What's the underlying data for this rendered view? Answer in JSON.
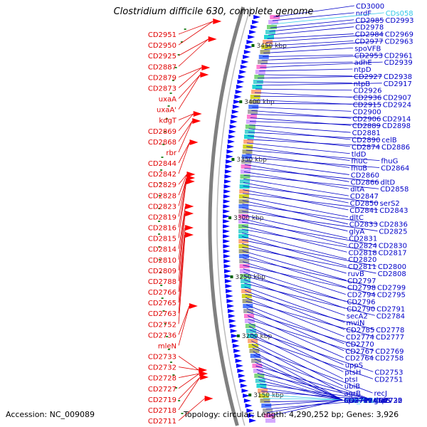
{
  "title": "Clostridium difficile 630, complete genome",
  "footer": {
    "accession": "Accession: NC_009089",
    "summary": "Topology: circular; Length: 4,290,252 bp; Genes: 3,926"
  },
  "colors": {
    "left_labels": "#e00000",
    "right_labels": "#0000c8",
    "rna_labels": "#33c8e8",
    "backbone": "#808080",
    "gene_fwd": "#ff0000",
    "gene_rev": "#0000ff",
    "scale_tick": "#006400"
  },
  "scale_marks": [
    "3450 kbp",
    "3400 kbp",
    "3350 kbp",
    "3300 kbp",
    "3250 kbp",
    "3200 kbp",
    "3150 kbp"
  ],
  "left_labels": [
    "CD2951",
    "CD2950",
    "CD2925",
    "CD2887",
    "CD2879",
    "CD2873",
    "uxaA",
    "uxaA'",
    "kdgT",
    "CD2869",
    "CD2868",
    "rbr",
    "CD2844",
    "CD2842",
    "CD2829",
    "CD2828",
    "CD2823",
    "CD2819",
    "CD2816",
    "CD2815",
    "CD2814",
    "CD2810",
    "CD2809",
    "CD2788",
    "CD2766",
    "CD2765",
    "CD2763",
    "CD2752",
    "CD2736",
    "mleN",
    "CD2733",
    "CD2732",
    "CD2728",
    "CD2727",
    "CD2719",
    "CD2718",
    "CD2711"
  ],
  "right_labels": [
    {
      "text": "CD3000",
      "rna": false
    },
    {
      "text": "nrdF",
      "rna": false
    },
    {
      "text": "CDs058",
      "rna": true
    },
    {
      "text": "CD2985",
      "rna": false
    },
    {
      "text": "CD2993",
      "rna": false
    },
    {
      "text": "CD2978",
      "rna": false
    },
    {
      "text": "CD2984",
      "rna": false
    },
    {
      "text": "CD2969",
      "rna": false
    },
    {
      "text": "CD2977",
      "rna": false
    },
    {
      "text": "CD2963",
      "rna": false
    },
    {
      "text": "spoVFB",
      "rna": false
    },
    {
      "text": "CD2953",
      "rna": false
    },
    {
      "text": "CD2961",
      "rna": false
    },
    {
      "text": "adhE",
      "rna": false
    },
    {
      "text": "CD2939",
      "rna": false
    },
    {
      "text": "ntpD",
      "rna": false
    },
    {
      "text": "CD2927",
      "rna": false
    },
    {
      "text": "CD2938",
      "rna": false
    },
    {
      "text": "ntpB",
      "rna": false
    },
    {
      "text": "CD2917",
      "rna": false
    },
    {
      "text": "CD2926",
      "rna": false
    },
    {
      "text": "CD2936",
      "rna": false
    },
    {
      "text": "CD2907",
      "rna": false
    },
    {
      "text": "CD2915",
      "rna": false
    },
    {
      "text": "CD2924",
      "rna": false
    },
    {
      "text": "CD2900",
      "rna": false
    },
    {
      "text": "CD2906",
      "rna": false
    },
    {
      "text": "CD2914",
      "rna": false
    },
    {
      "text": "CD2889",
      "rna": false
    },
    {
      "text": "CD2898",
      "rna": false
    },
    {
      "text": "CD2881",
      "rna": false
    },
    {
      "text": "CD2890",
      "rna": false
    },
    {
      "text": "celB",
      "rna": false
    },
    {
      "text": "CD2874",
      "rna": false
    },
    {
      "text": "CD2886",
      "rna": false
    },
    {
      "text": "tldD",
      "rna": false
    },
    {
      "text": "fhuC",
      "rna": false
    },
    {
      "text": "fhuG",
      "rna": false
    },
    {
      "text": "fhuB",
      "rna": false
    },
    {
      "text": "CD2864",
      "rna": false
    },
    {
      "text": "CD2860",
      "rna": false
    },
    {
      "text": "CD2866",
      "rna": false
    },
    {
      "text": "dltD",
      "rna": false
    },
    {
      "text": "dltA",
      "rna": false
    },
    {
      "text": "CD2858",
      "rna": false
    },
    {
      "text": "CD2847",
      "rna": false
    },
    {
      "text": "CD2850",
      "rna": false
    },
    {
      "text": "serS2",
      "rna": false
    },
    {
      "text": "CD2841",
      "rna": false
    },
    {
      "text": "CD2843",
      "rna": false
    },
    {
      "text": "dltC",
      "rna": false
    },
    {
      "text": "CD2833",
      "rna": false
    },
    {
      "text": "CD2836",
      "rna": false
    },
    {
      "text": "glyA",
      "rna": false
    },
    {
      "text": "CD2825",
      "rna": false
    },
    {
      "text": "CD2831",
      "rna": false
    },
    {
      "text": "CD2824",
      "rna": false
    },
    {
      "text": "CD2830",
      "rna": false
    },
    {
      "text": "CD2818",
      "rna": false
    },
    {
      "text": "CD2817",
      "rna": false
    },
    {
      "text": "CD2820",
      "rna": false
    },
    {
      "text": "CD2811",
      "rna": false
    },
    {
      "text": "CD2800",
      "rna": false
    },
    {
      "text": "ruvB",
      "rna": false
    },
    {
      "text": "CD2808",
      "rna": false
    },
    {
      "text": "CD2797",
      "rna": false
    },
    {
      "text": "CD2798",
      "rna": false
    },
    {
      "text": "CD2799",
      "rna": false
    },
    {
      "text": "CD2794",
      "rna": false
    },
    {
      "text": "CD2795",
      "rna": false
    },
    {
      "text": "CD2796",
      "rna": false
    },
    {
      "text": "CD2790",
      "rna": false
    },
    {
      "text": "CD2791",
      "rna": false
    },
    {
      "text": "secA2",
      "rna": false
    },
    {
      "text": "CD2784",
      "rna": false
    },
    {
      "text": "mviN",
      "rna": false
    },
    {
      "text": "CD2785",
      "rna": false
    },
    {
      "text": "CD2778",
      "rna": false
    },
    {
      "text": "CD2774",
      "rna": false
    },
    {
      "text": "CD2777",
      "rna": false
    },
    {
      "text": "CD2770",
      "rna": false
    },
    {
      "text": "CD2767",
      "rna": false
    },
    {
      "text": "CD2769",
      "rna": false
    },
    {
      "text": "CD2764",
      "rna": false
    },
    {
      "text": "CD2758",
      "rna": false
    },
    {
      "text": "uppS",
      "rna": false
    },
    {
      "text": "ptsH",
      "rna": false
    },
    {
      "text": "CD2753",
      "rna": false
    },
    {
      "text": "ptsI",
      "rna": false
    },
    {
      "text": "CD2751",
      "rna": false
    },
    {
      "text": "ubiB",
      "rna": false
    },
    {
      "text": "agrB",
      "rna": false
    },
    {
      "text": "recJ",
      "rna": false
    },
    {
      "text": "apt",
      "rna": false
    },
    {
      "text": "dtd",
      "rna": false
    },
    {
      "text": "relA",
      "rna": false
    },
    {
      "text": "hisS",
      "rna": false
    },
    {
      "text": "aspS",
      "rna": false
    },
    {
      "text": "CD2737",
      "rna": false
    },
    {
      "text": "CD2735",
      "rna": false
    },
    {
      "text": "CD2729",
      "rna": false
    },
    {
      "text": "CD2730",
      "rna": false
    },
    {
      "text": "CD2722",
      "rna": false
    },
    {
      "text": "CD2721",
      "rna": false
    },
    {
      "text": "CD2720",
      "rna": false
    },
    {
      "text": "23s_rRNA",
      "rna": true
    },
    {
      "text": "CDs057",
      "rna": true
    },
    {
      "text": "gtaB",
      "rna": false
    },
    {
      "text": "CD2715A",
      "rna": false
    },
    {
      "text": "galE",
      "rna": false
    },
    {
      "text": "CD2710",
      "rna": false
    },
    {
      "text": "CD2707",
      "rna": false
    }
  ]
}
